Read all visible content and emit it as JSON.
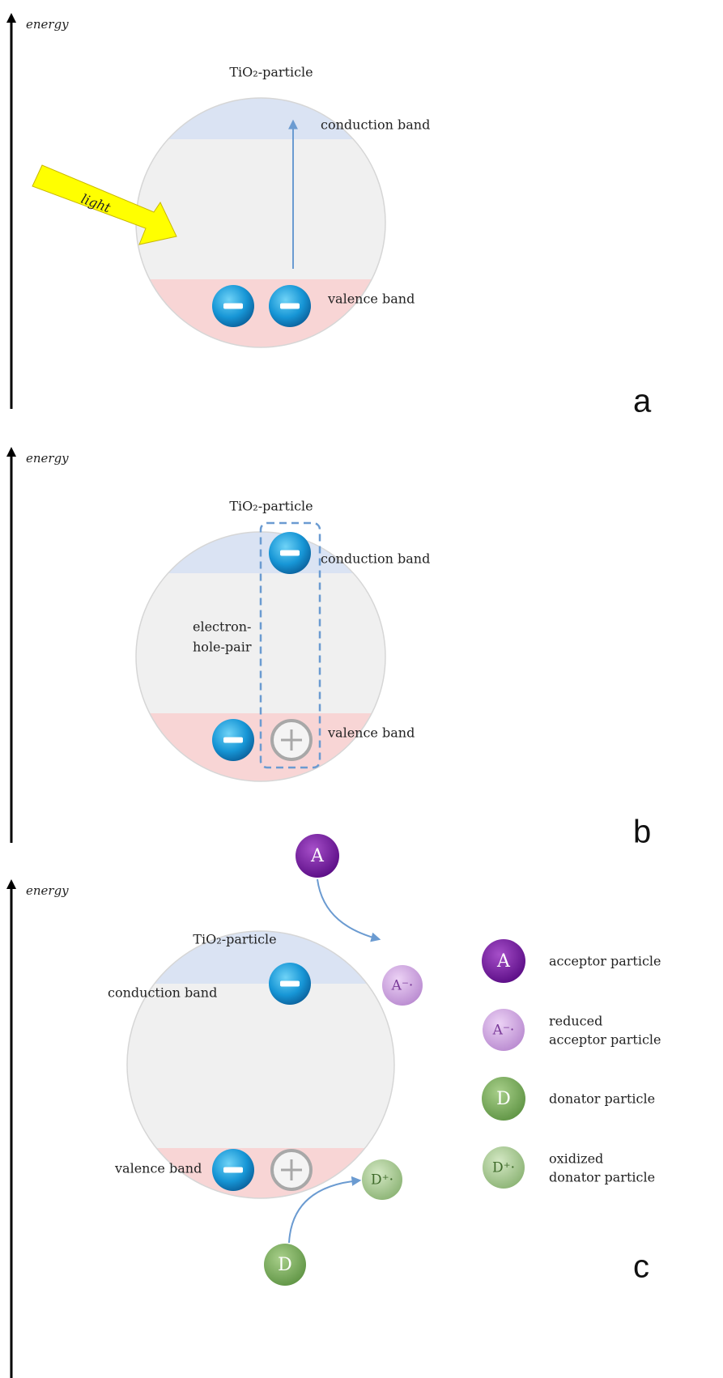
{
  "panels": [
    {
      "axis_label": "energy",
      "particle_label": "TiO₂-particle",
      "conduction_band": "conduction band",
      "valence_band": "valence band",
      "light": "light",
      "panel_label": "a"
    },
    {
      "axis_label": "energy",
      "particle_label": "TiO₂-particle",
      "conduction_band": "conduction band",
      "valence_band": "valence band",
      "pair_label": [
        "electron-",
        "hole-pair"
      ],
      "panel_label": "b"
    },
    {
      "axis_label": "energy",
      "particle_label": "TiO₂-particle",
      "conduction_band": "conduction band",
      "valence_band": "valence band",
      "acceptor": "A",
      "reduced_acceptor": "A⁻·",
      "donator": "D",
      "oxidized_donator": "D⁺·",
      "panel_label": "c",
      "legend": [
        {
          "symbol": "A",
          "label": [
            "acceptor particle"
          ]
        },
        {
          "symbol": "A⁻·",
          "label": [
            "reduced",
            "acceptor particle"
          ]
        },
        {
          "symbol": "D",
          "label": [
            "donator particle"
          ]
        },
        {
          "symbol": "D⁺·",
          "label": [
            "oxidized",
            "donator particle"
          ]
        }
      ]
    }
  ]
}
